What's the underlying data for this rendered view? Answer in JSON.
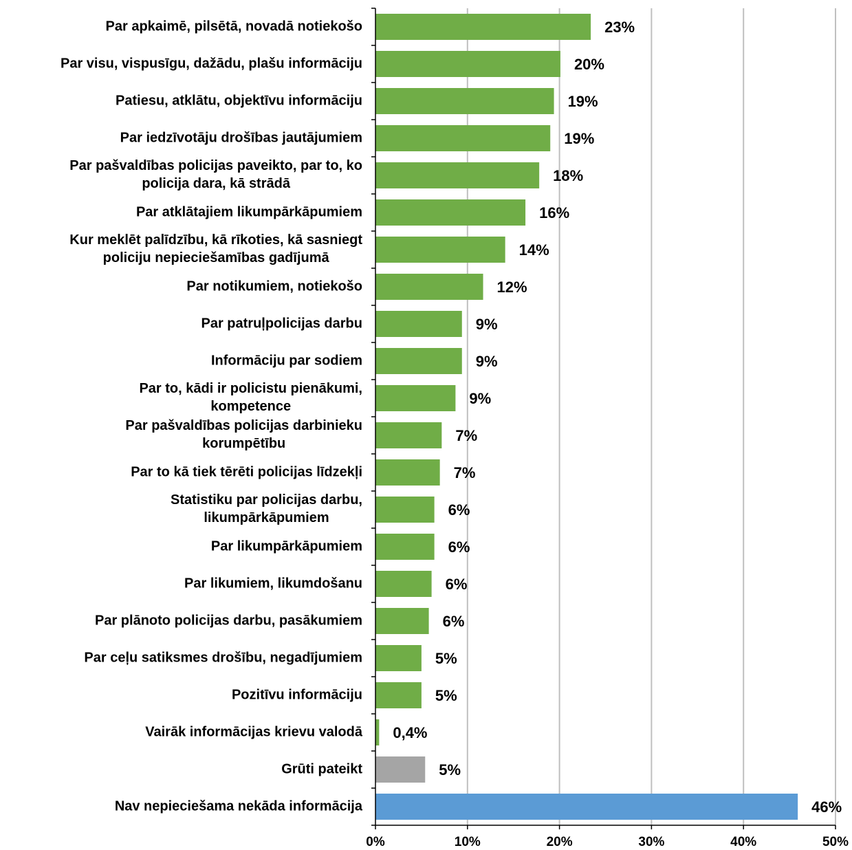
{
  "chart_data": {
    "type": "hbar",
    "categories": [
      "Par apkaimē, pilsētā, novadā notiekošo",
      "Par visu, vispusīgu, dažādu, plašu informāciju",
      "Patiesu, atklātu, objektīvu informāciju",
      "Par iedzīvotāju drošības jautājumiem",
      "Par pašvaldības policijas paveikto, par to, ko\npolicija dara, kā strādā",
      "Par atklātajiem likumpārkāpumiem",
      "Kur meklēt palīdzību, kā rīkoties, kā sasniegt\npoliciju nepieciešamības gadījumā",
      "Par notikumiem, notiekošo",
      "Par patruļpolicijas darbu",
      "Informāciju par sodiem",
      "Par to, kādi ir policistu pienākumi,\nkompetence",
      "Par pašvaldības policijas darbinieku\nkorumpētību",
      "Par to kā tiek tērēti policijas līdzekļi",
      "Statistiku par policijas darbu,\nlikumpārkāpumiem",
      "Par likumpārkāpumiem",
      "Par likumiem, likumdošanu",
      "Par plānoto policijas darbu, pasākumiem",
      "Par ceļu satiksmes drošību, negadījumiem",
      "Pozitīvu informāciju",
      "Vairāk informācijas krievu valodā",
      "Grūti pateikt",
      "Nav nepieciešama nekāda informācija"
    ],
    "values": [
      23.4,
      20.1,
      19.4,
      19.0,
      17.8,
      16.3,
      14.1,
      11.7,
      9.4,
      9.4,
      8.7,
      7.2,
      7.0,
      6.4,
      6.4,
      6.1,
      5.8,
      5.0,
      5.0,
      0.4,
      5.4,
      45.9
    ],
    "value_labels": [
      "23%",
      "20%",
      "19%",
      "19%",
      "18%",
      "16%",
      "14%",
      "12%",
      "9%",
      "9%",
      "9%",
      "7%",
      "7%",
      "6%",
      "6%",
      "6%",
      "6%",
      "5%",
      "5%",
      "0,4%",
      "5%",
      "46%"
    ],
    "colors": [
      "#70ad47",
      "#70ad47",
      "#70ad47",
      "#70ad47",
      "#70ad47",
      "#70ad47",
      "#70ad47",
      "#70ad47",
      "#70ad47",
      "#70ad47",
      "#70ad47",
      "#70ad47",
      "#70ad47",
      "#70ad47",
      "#70ad47",
      "#70ad47",
      "#70ad47",
      "#70ad47",
      "#70ad47",
      "#70ad47",
      "#a5a5a5",
      "#5b9bd5"
    ],
    "xlim": [
      0,
      50
    ],
    "xticks": [
      {
        "value": 0,
        "label": "0%"
      },
      {
        "value": 10,
        "label": "10%"
      },
      {
        "value": 20,
        "label": "20%"
      },
      {
        "value": 30,
        "label": "30%"
      },
      {
        "value": 40,
        "label": "40%"
      },
      {
        "value": 50,
        "label": "50%"
      }
    ],
    "grid": true
  }
}
